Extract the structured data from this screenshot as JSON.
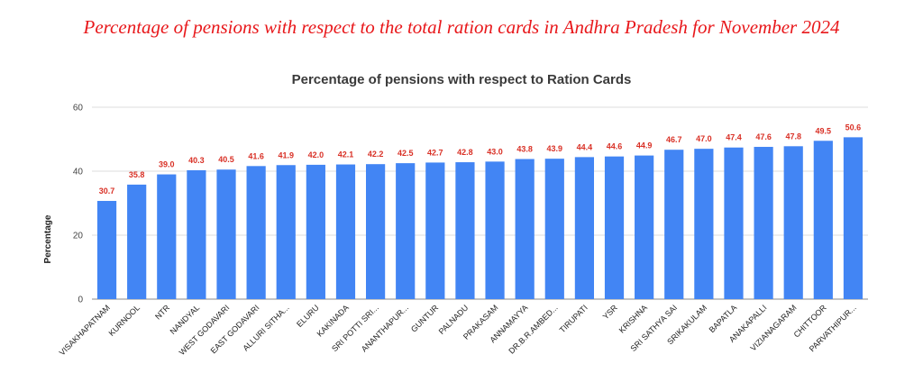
{
  "banner_title": "Percentage of pensions with respect to the total ration cards in Andhra Pradesh for November 2024",
  "chart_data": {
    "type": "bar",
    "title": "Percentage of pensions with respect to Ration Cards",
    "xlabel": "",
    "ylabel": "Percentage",
    "ylim": [
      0,
      60
    ],
    "yticks": [
      0,
      20,
      40,
      60
    ],
    "grid": true,
    "categories": [
      "VISAKHAPATNAM",
      "KURNOOL",
      "NTR",
      "NANDYAL",
      "WEST GODAVARI",
      "EAST GODAVARI",
      "ALLURI SITHA...",
      "ELURU",
      "KAKINADA",
      "SRI POTTI SRI...",
      "ANANTHAPUR...",
      "GUNTUR",
      "PALNADU",
      "PRAKASAM",
      "ANNAMAYYA",
      "DR.B.R.AMBED...",
      "TIRUPATI",
      "YSR",
      "KRISHNA",
      "SRI SATHYA SAI",
      "SRIKAKULAM",
      "BAPATLA",
      "ANAKAPALLI",
      "VIZIANAGARAM",
      "CHITTOOR",
      "PARVATHIPUR..."
    ],
    "values": [
      30.7,
      35.8,
      39.0,
      40.3,
      40.5,
      41.6,
      41.9,
      42.0,
      42.1,
      42.2,
      42.5,
      42.7,
      42.8,
      43.0,
      43.8,
      43.9,
      44.4,
      44.6,
      44.9,
      46.7,
      47.0,
      47.4,
      47.6,
      47.8,
      49.5,
      50.6
    ],
    "data_labels": [
      "30.7",
      "35.8",
      "39.0",
      "40.3",
      "40.5",
      "41.6",
      "41.9",
      "42.0",
      "42.1",
      "42.2",
      "42.5",
      "42.7",
      "42.8",
      "43.0",
      "43.8",
      "43.9",
      "44.4",
      "44.6",
      "44.9",
      "46.7",
      "47.0",
      "47.4",
      "47.6",
      "47.8",
      "49.5",
      "50.6"
    ],
    "bar_color": "#4285f4",
    "label_color": "#d93025",
    "grid_color": "#dddddd"
  }
}
